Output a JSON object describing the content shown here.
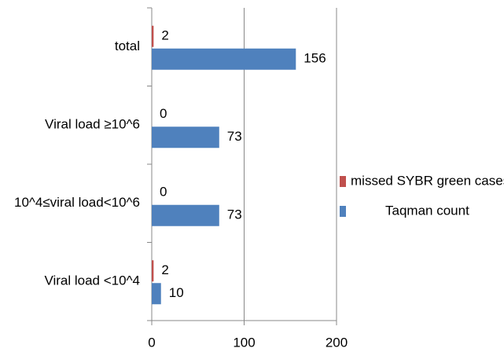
{
  "chart_data": {
    "type": "hbar",
    "categories": [
      "total",
      "Viral load ≥10^6",
      "10^4≤viral load<10^6",
      "Viral load <10^4"
    ],
    "series": [
      {
        "name": "missed SYBR green cases",
        "color": "#c0504d",
        "values": [
          2,
          0,
          0,
          2
        ]
      },
      {
        "name": "Taqman count",
        "color": "#4f81bd",
        "values": [
          156,
          73,
          73,
          10
        ]
      }
    ],
    "xlim": [
      0,
      200
    ],
    "xticks": [
      0,
      100,
      200
    ],
    "grid": true,
    "legend": "right"
  }
}
